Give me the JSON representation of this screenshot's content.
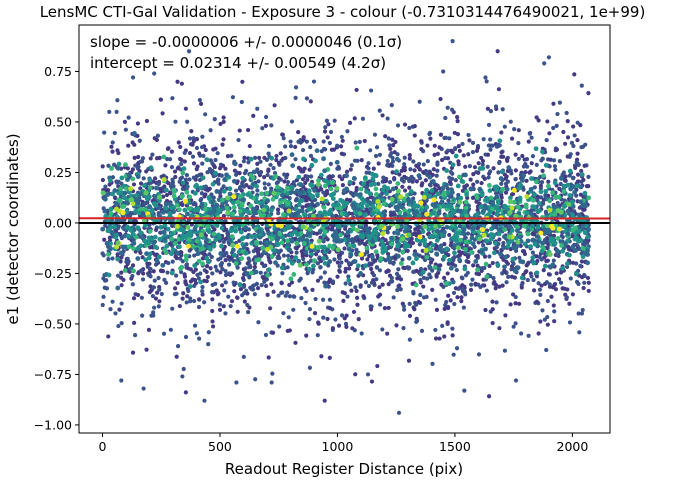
{
  "chart_data": {
    "type": "scatter",
    "title": "LensMC CTI-Gal Validation - Exposure 3 - colour (-0.7310314476490021, 1e+99)",
    "xlabel": "Readout Register Distance (pix)",
    "ylabel": "e1 (detector coordinates)",
    "xlim": [
      -100,
      2160
    ],
    "ylim": [
      -1.04,
      0.98
    ],
    "xticks": [
      0,
      500,
      1000,
      1500,
      2000
    ],
    "xtick_labels": [
      "0",
      "500",
      "1000",
      "1500",
      "2000"
    ],
    "yticks": [
      -1.0,
      -0.75,
      -0.5,
      -0.25,
      0.0,
      0.25,
      0.5,
      0.75
    ],
    "ytick_labels": [
      "−1.00",
      "−0.75",
      "−0.50",
      "−0.25",
      "0.00",
      "0.25",
      "0.50",
      "0.75"
    ],
    "grid": false,
    "annotations": [
      "slope = -0.0000006 +/- 0.0000046 (0.1σ)",
      "intercept = 0.02314 +/- 0.00549 (4.2σ)"
    ],
    "lines": [
      {
        "role": "fit",
        "color": "#d62728",
        "y": 0.02314,
        "slope": -6e-07
      },
      {
        "role": "zero",
        "color": "#000000",
        "y": 0.0,
        "slope": 0.0
      }
    ],
    "x_range_data": [
      0,
      2070
    ],
    "points": {
      "x": [
        1262,
        175,
        570,
        720,
        1880,
        1900,
        80,
        1490,
        1450,
        130,
        220,
        340,
        900,
        1130,
        1630,
        1760,
        2040,
        60,
        450,
        1350
      ],
      "y": [
        -0.94,
        -0.82,
        -0.79,
        -0.79,
        0.79,
        0.82,
        -0.78,
        0.9,
        0.75,
        0.72,
        0.74,
        -0.76,
        0.7,
        -0.75,
        0.72,
        -0.78,
        0.68,
        0.55,
        -0.6,
        0.6
      ]
    },
    "dot_colors": [
      "#3b528b",
      "#31688e",
      "#21918c",
      "#35b779",
      "#5ec962",
      "#b5de2b",
      "#fde725",
      "#443983"
    ]
  }
}
